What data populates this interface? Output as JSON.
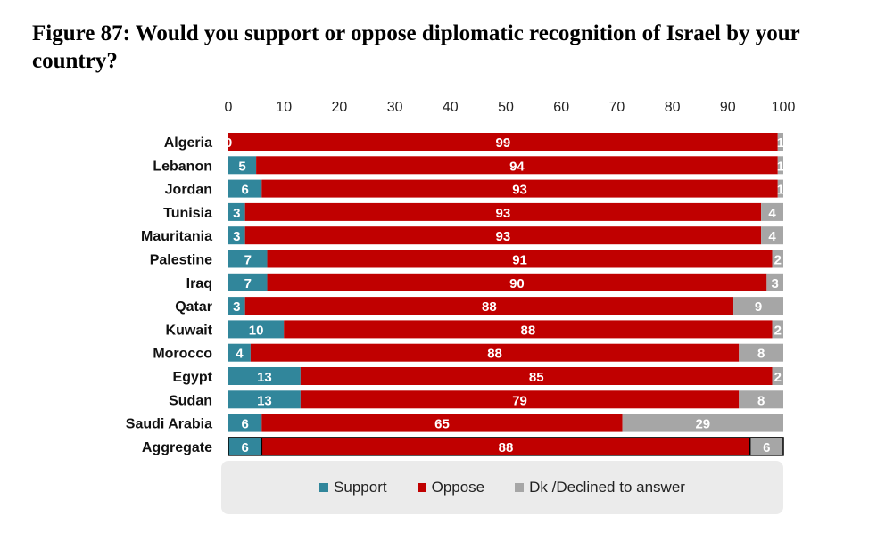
{
  "chart_data": {
    "type": "bar",
    "orientation": "horizontal",
    "stacked": true,
    "title": "Figure 87: Would you support or oppose diplomatic recognition of Israel by your country?",
    "xlim": [
      0,
      100
    ],
    "x_ticks": [
      0,
      10,
      20,
      30,
      40,
      50,
      60,
      70,
      80,
      90,
      100
    ],
    "grid": false,
    "legend_position": "bottom",
    "categories": [
      "Algeria",
      "Lebanon",
      "Jordan",
      "Tunisia",
      "Mauritania",
      "Palestine",
      "Iraq",
      "Qatar",
      "Kuwait",
      "Morocco",
      "Egypt",
      "Sudan",
      "Saudi Arabia",
      "Aggregate"
    ],
    "series": [
      {
        "name": "Support",
        "color": "#31869b",
        "values": [
          0,
          5,
          6,
          3,
          3,
          7,
          7,
          3,
          10,
          4,
          13,
          13,
          6,
          6
        ]
      },
      {
        "name": "Oppose",
        "color": "#c00000",
        "values": [
          99,
          94,
          93,
          93,
          93,
          91,
          90,
          88,
          88,
          88,
          85,
          79,
          65,
          88
        ]
      },
      {
        "name": "Dk /Declined to answer",
        "color": "#a6a6a6",
        "values": [
          1,
          1,
          1,
          4,
          4,
          2,
          3,
          9,
          2,
          8,
          2,
          8,
          29,
          6
        ]
      }
    ],
    "highlight_category": "Aggregate"
  }
}
